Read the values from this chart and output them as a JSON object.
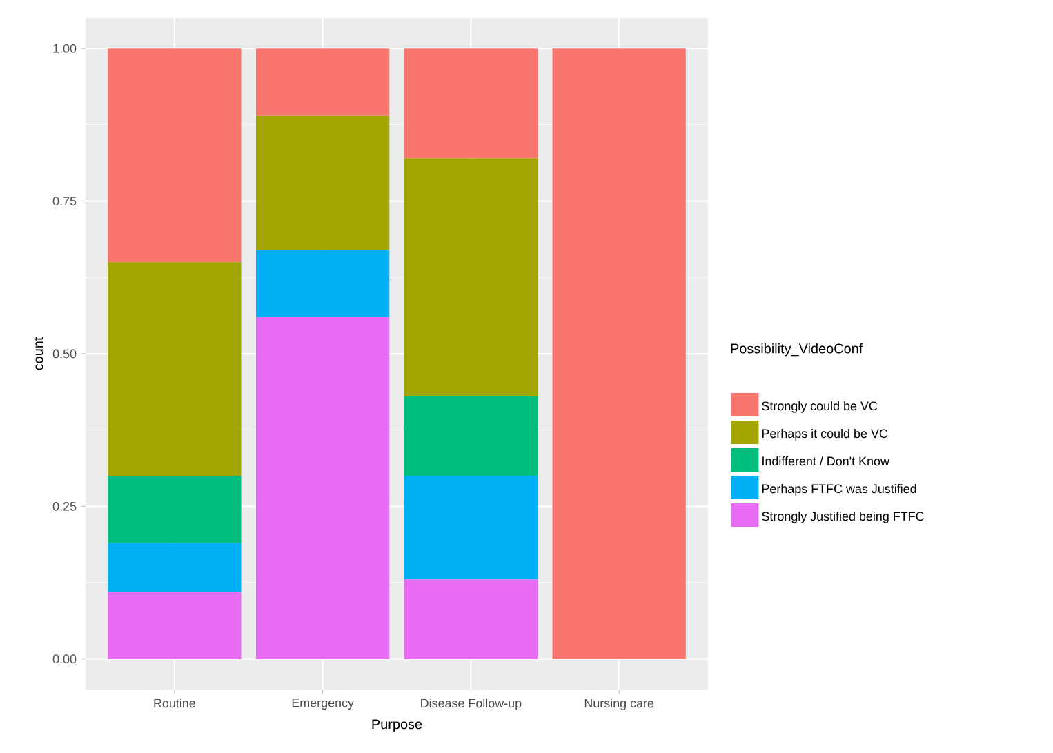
{
  "chart_data": {
    "type": "bar",
    "stacked": true,
    "xlabel": "Purpose",
    "ylabel": "count",
    "legend_title": "Possibility_VideoConf",
    "legend": "right",
    "grid": true,
    "categories": [
      "Routine",
      "Emergency",
      "Disease Follow-up",
      "Nursing care"
    ],
    "ylim": [
      -0.05,
      1.05
    ],
    "yticks": [
      {
        "value": 0,
        "label": "0.00"
      },
      {
        "value": 0.25,
        "label": "0.25"
      },
      {
        "value": 0.5,
        "label": "0.50"
      },
      {
        "value": 0.75,
        "label": "0.75"
      },
      {
        "value": 1,
        "label": "1.00"
      }
    ],
    "series": [
      {
        "name": "Strongly Justified being FTFC",
        "color": "#e76bf3",
        "values": [
          0.11,
          0.56,
          0.13,
          0
        ]
      },
      {
        "name": "Perhaps FTFC was Justified",
        "color": "#00b0f6",
        "values": [
          0.08,
          0.11,
          0.17,
          0
        ]
      },
      {
        "name": "Indifferent / Don't Know",
        "color": "#00bf7d",
        "values": [
          0.11,
          0,
          0.13,
          0
        ]
      },
      {
        "name": "Perhaps it could be VC",
        "color": "#a3a500",
        "values": [
          0.35,
          0.22,
          0.39,
          0
        ]
      },
      {
        "name": "Strongly could be VC",
        "color": "#f8766d",
        "values": [
          0.35,
          0.11,
          0.18,
          1
        ]
      }
    ]
  }
}
